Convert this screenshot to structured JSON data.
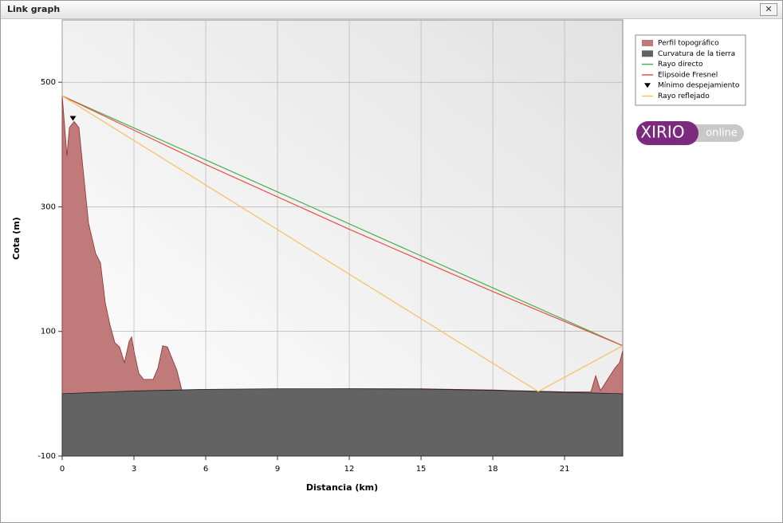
{
  "window": {
    "title": "Link graph",
    "logo": {
      "text": "XIRIO",
      "sub": "online"
    }
  },
  "chart_data": {
    "type": "line",
    "xlabel": "Distancia (km)",
    "ylabel": "Cota (m)",
    "xlim": [
      0,
      23.43
    ],
    "ylim": [
      -100,
      600
    ],
    "xticks": [
      0,
      3,
      6,
      9,
      12,
      15,
      18,
      21
    ],
    "yticks": [
      -100,
      100,
      300,
      500
    ],
    "grid": true,
    "legend": "upper-right",
    "series": [
      {
        "name": "Perfil topográfico",
        "style": "area",
        "color": "#c07a7a",
        "x": [
          0,
          0.2,
          0.3,
          0.5,
          0.7,
          0.9,
          1.1,
          1.4,
          1.6,
          1.8,
          2.0,
          2.2,
          2.4,
          2.6,
          2.8,
          2.9,
          3.0,
          3.2,
          3.4,
          3.8,
          4.0,
          4.2,
          4.4,
          4.6,
          4.8,
          5.0,
          6,
          9,
          12,
          15,
          18,
          21,
          22.1,
          22.3,
          22.5,
          23.1,
          23.3,
          23.43
        ],
        "values": [
          478,
          382,
          427,
          437,
          427,
          350,
          274,
          225,
          210,
          146,
          110,
          82,
          75,
          50,
          84,
          91,
          69,
          33,
          23,
          23,
          41,
          77,
          75,
          56,
          37,
          6,
          5,
          7,
          8,
          8,
          6,
          3,
          3,
          29,
          5,
          41,
          50,
          69
        ]
      },
      {
        "name": "Curvatura de la tierra",
        "style": "area",
        "color": "#636363",
        "x": [
          0,
          3,
          6,
          9,
          12,
          15,
          18,
          21,
          23.43
        ],
        "values": [
          0,
          4.4,
          7,
          8,
          8,
          7.5,
          5.5,
          2.3,
          0
        ]
      },
      {
        "name": "Rayo directo",
        "style": "line",
        "color": "#4caf50",
        "x": [
          0,
          23.43
        ],
        "values": [
          478,
          77
        ]
      },
      {
        "name": "Elipsoide Fresnel",
        "style": "line",
        "color": "#e8504a",
        "x": [
          0,
          6,
          12,
          18,
          23.43
        ],
        "values": [
          478,
          368,
          264,
          164,
          77
        ]
      },
      {
        "name": "Mínimo despejamiento",
        "style": "marker",
        "color": "#000000",
        "x": [
          0.45
        ],
        "values": [
          442
        ]
      },
      {
        "name": "Rayo reflejado",
        "style": "line",
        "color": "#f5c060",
        "x": [
          0,
          19.9,
          23.43
        ],
        "values": [
          478,
          3.6,
          77
        ]
      }
    ]
  }
}
